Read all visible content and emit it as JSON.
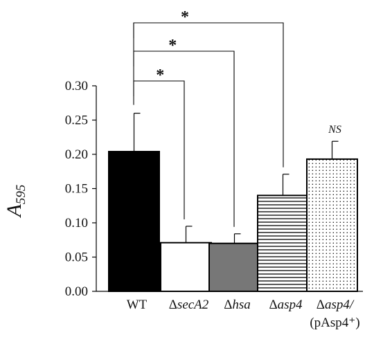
{
  "chart_data": {
    "type": "bar",
    "ylabel_main": "A",
    "ylabel_sub": "595",
    "xlabel": "",
    "title": "",
    "ylim": [
      0,
      0.3
    ],
    "yticks": [
      "0.00",
      "0.05",
      "0.10",
      "0.15",
      "0.20",
      "0.25",
      "0.30"
    ],
    "grid": false,
    "legend": "none",
    "categories": [
      {
        "prefix": "",
        "italic": "",
        "line2": "",
        "full": "WT"
      },
      {
        "prefix": "Δ",
        "italic": "secA2",
        "line2": "",
        "full": "ΔsecA2"
      },
      {
        "prefix": "Δ",
        "italic": "hsa",
        "line2": "",
        "full": "Δhsa"
      },
      {
        "prefix": "Δ",
        "italic": "asp4",
        "line2": "",
        "full": "Δasp4"
      },
      {
        "prefix": "Δ",
        "italic": "asp4/",
        "line2": "(pAsp4⁺)",
        "full": "Δasp4/(pAsp4⁺)"
      }
    ],
    "values": [
      0.204,
      0.071,
      0.07,
      0.14,
      0.193
    ],
    "errors": [
      0.056,
      0.024,
      0.014,
      0.031,
      0.026
    ],
    "fills": [
      "solid-black",
      "white",
      "solid-gray",
      "horizontal-stripes",
      "dots"
    ],
    "colors": {
      "black": "#000000",
      "gray": "#777777",
      "white": "#ffffff"
    },
    "comparisons": [
      {
        "from": 0,
        "to": 1,
        "label": "*"
      },
      {
        "from": 0,
        "to": 2,
        "label": "*"
      },
      {
        "from": 0,
        "to": 3,
        "label": "*"
      }
    ],
    "annotations": [
      {
        "bar": 4,
        "label": "NS"
      }
    ]
  }
}
